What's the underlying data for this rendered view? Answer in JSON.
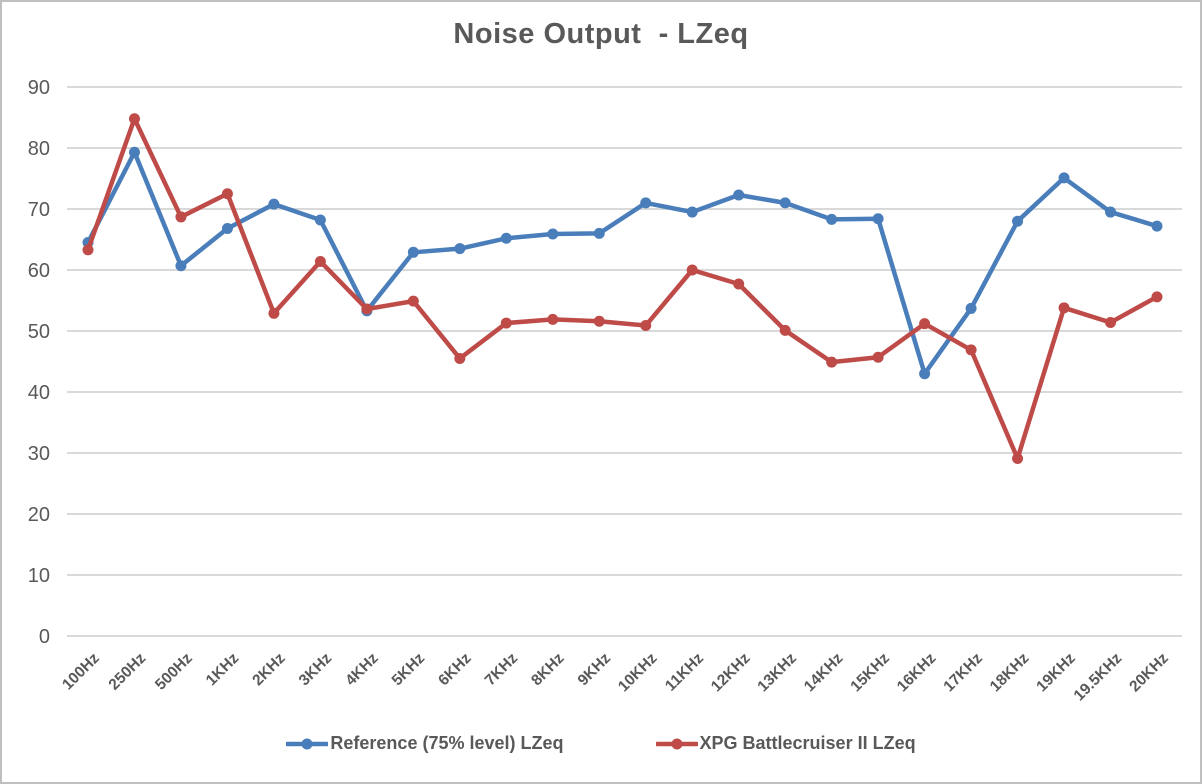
{
  "chart_data": {
    "type": "line",
    "title": "Noise Output  - LZeq",
    "categories": [
      "100Hz",
      "250Hz",
      "500Hz",
      "1KHz",
      "2KHz",
      "3KHz",
      "4KHz",
      "5KHz",
      "6KHz",
      "7KHz",
      "8KHz",
      "9KHz",
      "10KHz",
      "11KHz",
      "12KHz",
      "13KHz",
      "14KHz",
      "15KHz",
      "16KHz",
      "17KHz",
      "18KHz",
      "19KHz",
      "19.5KHz",
      "20KHz"
    ],
    "series": [
      {
        "name": "Reference (75% level) LZeq",
        "color": "#4A7EBB",
        "values": [
          64.5,
          79.3,
          60.7,
          66.8,
          70.8,
          68.2,
          53.3,
          62.9,
          63.5,
          65.2,
          65.9,
          66.0,
          71.0,
          69.5,
          72.3,
          71.0,
          68.3,
          68.4,
          43.0,
          53.7,
          68.0,
          75.1,
          69.5,
          67.2
        ]
      },
      {
        "name": "XPG Battlecruiser II LZeq",
        "color": "#BE4B48",
        "values": [
          63.3,
          84.8,
          68.7,
          72.5,
          52.9,
          61.4,
          53.6,
          54.9,
          45.5,
          51.3,
          51.9,
          51.6,
          50.9,
          60.0,
          57.7,
          50.1,
          44.9,
          45.7,
          51.2,
          46.9,
          29.1,
          53.8,
          51.4,
          55.6
        ]
      }
    ],
    "xlabel": "",
    "ylabel": "",
    "ylim": [
      0,
      90
    ],
    "ytick_step": 10,
    "yticks": [
      0,
      10,
      20,
      30,
      40,
      50,
      60,
      70,
      80,
      90
    ],
    "grid": true,
    "legend_position": "bottom",
    "colors": {
      "text": "#595959",
      "gridline": "#D9D9D9",
      "border": "#BFBFBF",
      "background": "#FFFFFF"
    }
  }
}
